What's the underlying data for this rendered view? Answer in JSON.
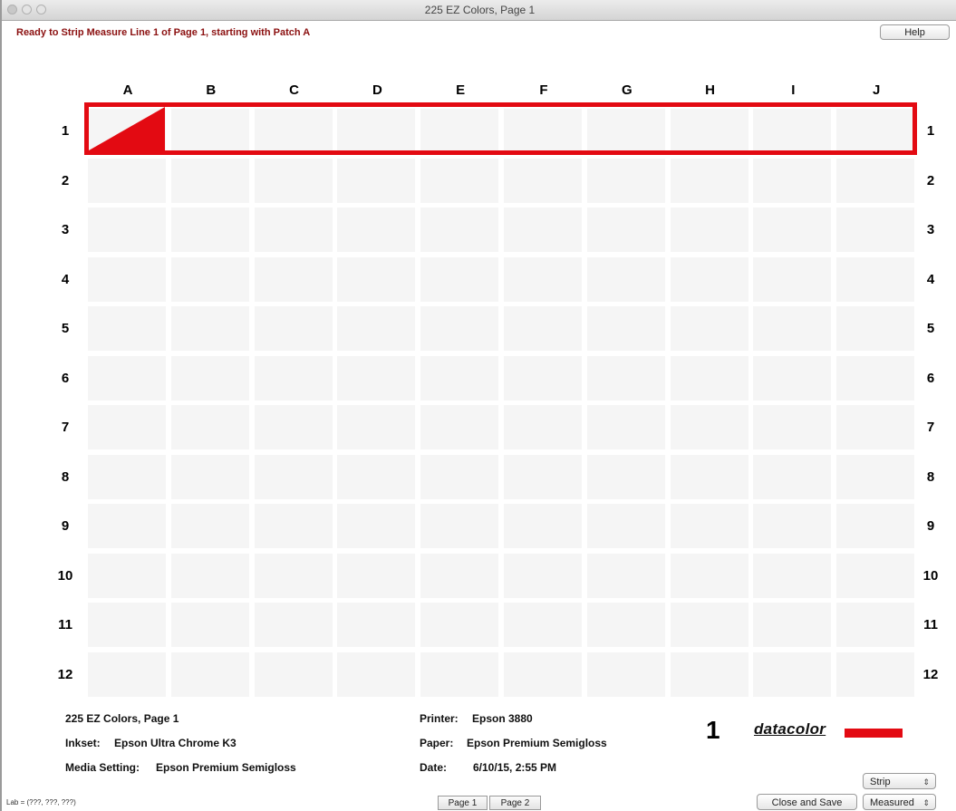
{
  "window": {
    "title": "225 EZ Colors, Page 1"
  },
  "status_message": "Ready to Strip Measure Line 1 of Page 1, starting with Patch A",
  "help_label": "Help",
  "grid": {
    "columns": [
      "A",
      "B",
      "C",
      "D",
      "E",
      "F",
      "G",
      "H",
      "I",
      "J"
    ],
    "rows": [
      "1",
      "2",
      "3",
      "4",
      "5",
      "6",
      "7",
      "8",
      "9",
      "10",
      "11",
      "12"
    ],
    "active_row": "1",
    "active_patch": "A",
    "highlight_color": "#e30a12"
  },
  "info": {
    "name": "225 EZ Colors, Page 1",
    "inkset_label": "Inkset:",
    "inkset_value": "Epson Ultra Chrome K3",
    "media_label": "Media Setting:",
    "media_value": "Epson Premium Semigloss",
    "printer_label": "Printer:",
    "printer_value": "Epson 3880",
    "paper_label": "Paper:",
    "paper_value": "Epson Premium Semigloss",
    "date_label": "Date:",
    "date_value": "6/10/15, 2:55 PM"
  },
  "page_number": "1",
  "logo_text": "datacolor",
  "lab_readout": "Lab = (???, ???, ???)",
  "page_buttons": [
    "Page 1",
    "Page 2"
  ],
  "strip_select": "Strip",
  "close_save_label": "Close and Save",
  "measured_select": "Measured"
}
